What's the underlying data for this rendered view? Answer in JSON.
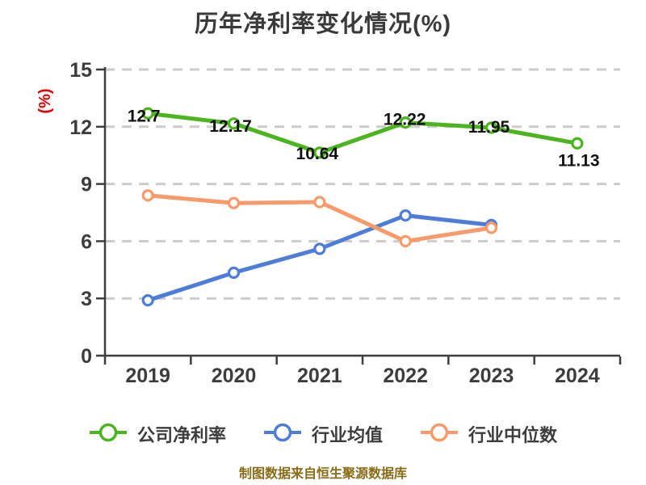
{
  "title": "历年净利率变化情况(%)",
  "footer": "制图数据来自恒生聚源数据库",
  "legend": {
    "items": [
      {
        "label": "公司净利率",
        "color": "#4bb41e"
      },
      {
        "label": "行业均值",
        "color": "#4d7dd8"
      },
      {
        "label": "行业中位数",
        "color": "#f89a6a"
      }
    ]
  },
  "chart_data": {
    "type": "line",
    "title": "历年净利率变化情况(%)",
    "categories": [
      "2019",
      "2020",
      "2021",
      "2022",
      "2023",
      "2024"
    ],
    "series": [
      {
        "name": "公司净利率",
        "color": "#4bb41e",
        "values": [
          12.7,
          12.17,
          10.64,
          12.22,
          11.95,
          11.13
        ],
        "data_labels": [
          "12.7",
          "12.17",
          "10.64",
          "12.22",
          "11.95",
          "11.13"
        ],
        "label_offsets": [
          [
            -5,
            3
          ],
          [
            -4,
            3
          ],
          [
            -3,
            1
          ],
          [
            -1,
            -4
          ],
          [
            -3,
            -1
          ],
          [
            2,
            21
          ]
        ]
      },
      {
        "name": "行业均值",
        "color": "#4d7dd8",
        "values": [
          2.9,
          4.35,
          5.6,
          7.35,
          6.85,
          null
        ]
      },
      {
        "name": "行业中位数",
        "color": "#f89a6a",
        "values": [
          8.4,
          8.0,
          8.05,
          6.0,
          6.7,
          null
        ]
      }
    ],
    "xlabel": "",
    "ylabel": "(%)",
    "ylim": [
      0,
      15
    ],
    "yticks": [
      0,
      3,
      6,
      9,
      12,
      15
    ],
    "grid": "horizontal-dashed",
    "legend_position": "bottom"
  },
  "colors": {
    "axis": "#3d3d3d",
    "grid": "#cccccc",
    "tick_label": "#3d3d3d",
    "data_label": "#111111",
    "ylabel": "#e60000",
    "footer": "#8a6c16",
    "background": "#ffffff"
  }
}
